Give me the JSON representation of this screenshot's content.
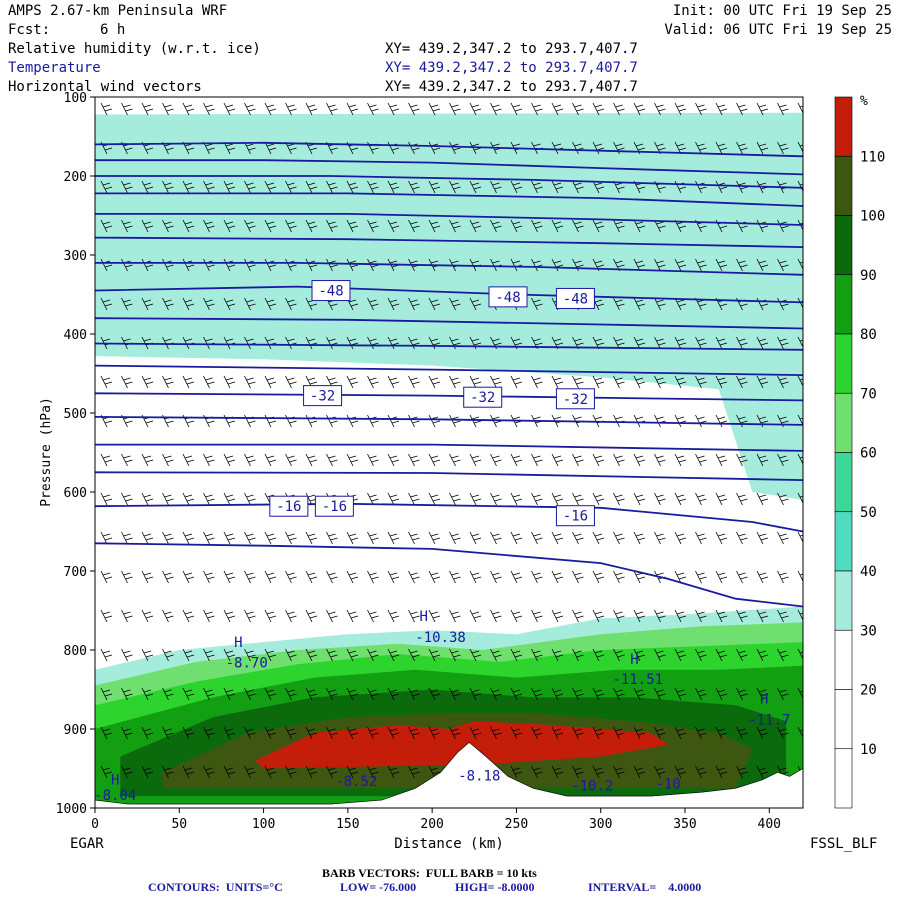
{
  "header": {
    "model": "AMPS 2.67-km Peninsula WRF",
    "fcst_label": "Fcst:",
    "fcst_value": "6 h",
    "init": "Init: 00 UTC Fri 19 Sep 25",
    "valid": "Valid: 06 UTC Fri 19 Sep 25",
    "fields": [
      {
        "label": "Relative humidity (w.r.t. ice)",
        "xy": "XY= 439.2,347.2 to 293.7,407.7"
      },
      {
        "label": "Temperature",
        "xy": "XY= 439.2,347.2 to 293.7,407.7"
      },
      {
        "label": "Horizontal wind vectors",
        "xy": "XY= 439.2,347.2 to 293.7,407.7"
      }
    ]
  },
  "footer": {
    "left_station": "EGAR",
    "right_station": "FSSL_BLF",
    "barb_note": "BARB VECTORS:  FULL BARB = 10 kts",
    "contour_units_label": "CONTOURS:  UNITS=°C",
    "low": "LOW= -76.000",
    "high": "HIGH= -8.0000",
    "interval": "INTERVAL=    4.0000"
  },
  "colorbar": {
    "unit": "%",
    "levels": [
      {
        "label": "",
        "color": "#c41e0a"
      },
      {
        "label": "110",
        "color": "#3d5710"
      },
      {
        "label": "100",
        "color": "#0b6a0b"
      },
      {
        "label": "90",
        "color": "#12a012"
      },
      {
        "label": "80",
        "color": "#2dd42d"
      },
      {
        "label": "70",
        "color": "#6fe06f"
      },
      {
        "label": "60",
        "color": "#3fd69a"
      },
      {
        "label": "50",
        "color": "#4fdcc0"
      },
      {
        "label": "40",
        "color": "#a5ecdc"
      },
      {
        "label": "30",
        "color": "#ffffff"
      },
      {
        "label": "20",
        "color": "#ffffff"
      },
      {
        "label": "10",
        "color": "#ffffff"
      }
    ]
  },
  "chart_data": {
    "type": "heatmap",
    "xlabel": "Distance (km)",
    "ylabel": "Pressure (hPa)",
    "xlim": [
      0,
      420
    ],
    "ylim": [
      1000,
      100
    ],
    "x_ticks": [
      0,
      50,
      100,
      150,
      200,
      250,
      300,
      350,
      400
    ],
    "y_ticks": [
      100,
      200,
      300,
      400,
      500,
      600,
      700,
      800,
      900,
      1000
    ],
    "terrain_km_hpa": [
      [
        0,
        990
      ],
      [
        20,
        995
      ],
      [
        60,
        995
      ],
      [
        100,
        995
      ],
      [
        140,
        995
      ],
      [
        170,
        990
      ],
      [
        190,
        975
      ],
      [
        205,
        955
      ],
      [
        215,
        930
      ],
      [
        222,
        917
      ],
      [
        232,
        935
      ],
      [
        245,
        960
      ],
      [
        260,
        975
      ],
      [
        280,
        985
      ],
      [
        300,
        985
      ],
      [
        330,
        985
      ],
      [
        360,
        980
      ],
      [
        380,
        975
      ],
      [
        395,
        965
      ],
      [
        405,
        955
      ],
      [
        412,
        960
      ],
      [
        420,
        950
      ]
    ],
    "rh_bands": [
      {
        "level": 110,
        "points": [
          [
            0,
            190
          ],
          [
            80,
            175
          ],
          [
            160,
            180
          ],
          [
            250,
            185
          ],
          [
            320,
            190
          ],
          [
            420,
            200
          ],
          [
            420,
            270
          ],
          [
            320,
            280
          ],
          [
            200,
            300
          ],
          [
            100,
            295
          ],
          [
            0,
            290
          ]
        ]
      },
      {
        "level": 100,
        "points": [
          [
            0,
            165
          ],
          [
            100,
            160
          ],
          [
            200,
            160
          ],
          [
            300,
            165
          ],
          [
            420,
            170
          ],
          [
            420,
            310
          ],
          [
            300,
            330
          ],
          [
            200,
            340
          ],
          [
            100,
            335
          ],
          [
            0,
            330
          ]
        ]
      },
      {
        "level": 90,
        "points": [
          [
            0,
            148
          ],
          [
            200,
            145
          ],
          [
            420,
            150
          ],
          [
            420,
            335
          ],
          [
            300,
            355
          ],
          [
            150,
            370
          ],
          [
            0,
            372
          ]
        ]
      },
      {
        "level": 80,
        "points": [
          [
            0,
            138
          ],
          [
            200,
            135
          ],
          [
            420,
            138
          ],
          [
            420,
            350
          ],
          [
            300,
            375
          ],
          [
            150,
            395
          ],
          [
            0,
            400
          ]
        ]
      },
      {
        "level": 60,
        "points": [
          [
            0,
            130
          ],
          [
            420,
            130
          ],
          [
            420,
            390
          ],
          [
            320,
            410
          ],
          [
            200,
            420
          ],
          [
            100,
            420
          ],
          [
            0,
            420
          ]
        ]
      },
      {
        "level": 40,
        "points": [
          [
            0,
            122
          ],
          [
            420,
            120
          ],
          [
            420,
            610
          ],
          [
            390,
            600
          ],
          [
            370,
            470
          ],
          [
            300,
            455
          ],
          [
            200,
            440
          ],
          [
            100,
            432
          ],
          [
            0,
            428
          ]
        ]
      },
      {
        "level": 40,
        "points": [
          [
            0,
            825
          ],
          [
            50,
            800
          ],
          [
            100,
            790
          ],
          [
            150,
            780
          ],
          [
            200,
            775
          ],
          [
            250,
            780
          ],
          [
            300,
            760
          ],
          [
            350,
            755
          ],
          [
            420,
            745
          ],
          [
            420,
            995
          ],
          [
            0,
            995
          ]
        ]
      },
      {
        "level": 60,
        "points": [
          [
            0,
            845
          ],
          [
            60,
            815
          ],
          [
            120,
            800
          ],
          [
            180,
            792
          ],
          [
            230,
            800
          ],
          [
            300,
            780
          ],
          [
            360,
            770
          ],
          [
            420,
            765
          ],
          [
            420,
            995
          ],
          [
            0,
            995
          ]
        ]
      },
      {
        "level": 80,
        "points": [
          [
            0,
            870
          ],
          [
            60,
            840
          ],
          [
            120,
            818
          ],
          [
            180,
            805
          ],
          [
            240,
            815
          ],
          [
            300,
            800
          ],
          [
            360,
            795
          ],
          [
            420,
            790
          ],
          [
            420,
            995
          ],
          [
            0,
            995
          ]
        ]
      },
      {
        "level": 90,
        "points": [
          [
            0,
            900
          ],
          [
            70,
            860
          ],
          [
            130,
            835
          ],
          [
            190,
            825
          ],
          [
            250,
            835
          ],
          [
            310,
            825
          ],
          [
            370,
            825
          ],
          [
            420,
            820
          ],
          [
            420,
            995
          ],
          [
            0,
            995
          ]
        ]
      },
      {
        "level": 100,
        "points": [
          [
            15,
            935
          ],
          [
            70,
            885
          ],
          [
            130,
            860
          ],
          [
            200,
            850
          ],
          [
            260,
            860
          ],
          [
            320,
            860
          ],
          [
            380,
            870
          ],
          [
            410,
            890
          ],
          [
            410,
            985
          ],
          [
            15,
            985
          ]
        ]
      },
      {
        "level": 110,
        "points": [
          [
            40,
            955
          ],
          [
            90,
            905
          ],
          [
            150,
            885
          ],
          [
            210,
            880
          ],
          [
            260,
            880
          ],
          [
            320,
            890
          ],
          [
            370,
            905
          ],
          [
            390,
            925
          ],
          [
            380,
            975
          ],
          [
            40,
            975
          ]
        ]
      },
      {
        "level": 120,
        "points": [
          [
            95,
            940
          ],
          [
            130,
            905
          ],
          [
            180,
            895
          ],
          [
            210,
            900
          ],
          [
            225,
            890
          ],
          [
            270,
            895
          ],
          [
            330,
            905
          ],
          [
            340,
            920
          ],
          [
            300,
            935
          ],
          [
            230,
            945
          ],
          [
            100,
            950
          ]
        ]
      }
    ],
    "isotherms_hpa": [
      [
        [
          0,
          160
        ],
        [
          100,
          158
        ],
        [
          200,
          162
        ],
        [
          300,
          168
        ],
        [
          420,
          175
        ]
      ],
      [
        [
          0,
          180
        ],
        [
          100,
          180
        ],
        [
          200,
          183
        ],
        [
          300,
          190
        ],
        [
          420,
          198
        ]
      ],
      [
        [
          0,
          200
        ],
        [
          140,
          200
        ],
        [
          260,
          205
        ],
        [
          420,
          215
        ]
      ],
      [
        [
          0,
          222
        ],
        [
          150,
          222
        ],
        [
          300,
          228
        ],
        [
          420,
          238
        ]
      ],
      [
        [
          0,
          248
        ],
        [
          150,
          248
        ],
        [
          300,
          255
        ],
        [
          420,
          262
        ]
      ],
      [
        [
          0,
          278
        ],
        [
          150,
          280
        ],
        [
          300,
          285
        ],
        [
          420,
          290
        ]
      ],
      [
        [
          0,
          310
        ],
        [
          120,
          310
        ],
        [
          260,
          315
        ],
        [
          420,
          325
        ]
      ],
      [
        [
          0,
          345
        ],
        [
          120,
          340
        ],
        [
          250,
          350
        ],
        [
          420,
          360
        ]
      ],
      [
        [
          0,
          380
        ],
        [
          150,
          382
        ],
        [
          300,
          388
        ],
        [
          420,
          393
        ]
      ],
      [
        [
          0,
          412
        ],
        [
          200,
          415
        ],
        [
          420,
          420
        ]
      ],
      [
        [
          0,
          440
        ],
        [
          200,
          445
        ],
        [
          420,
          452
        ]
      ],
      [
        [
          0,
          475
        ],
        [
          200,
          478
        ],
        [
          420,
          484
        ]
      ],
      [
        [
          0,
          505
        ],
        [
          200,
          508
        ],
        [
          420,
          515
        ]
      ],
      [
        [
          0,
          540
        ],
        [
          200,
          540
        ],
        [
          420,
          548
        ]
      ],
      [
        [
          0,
          575
        ],
        [
          200,
          576
        ],
        [
          420,
          585
        ]
      ],
      [
        [
          0,
          618
        ],
        [
          150,
          615
        ],
        [
          300,
          620
        ],
        [
          390,
          638
        ],
        [
          420,
          650
        ]
      ],
      [
        [
          0,
          665
        ],
        [
          100,
          668
        ],
        [
          200,
          672
        ],
        [
          300,
          690
        ],
        [
          340,
          710
        ],
        [
          380,
          735
        ],
        [
          420,
          745
        ]
      ]
    ],
    "isotherm_labels": [
      {
        "text": "-48",
        "x": 140,
        "p": 345
      },
      {
        "text": "-48",
        "x": 245,
        "p": 353
      },
      {
        "text": "-48",
        "x": 285,
        "p": 355
      },
      {
        "text": "-32",
        "x": 135,
        "p": 478
      },
      {
        "text": "-32",
        "x": 230,
        "p": 480
      },
      {
        "text": "-32",
        "x": 285,
        "p": 482
      },
      {
        "text": "-16",
        "x": 115,
        "p": 618
      },
      {
        "text": "-16",
        "x": 142,
        "p": 618
      },
      {
        "text": "-16",
        "x": 285,
        "p": 630
      }
    ],
    "extrema": [
      {
        "kind": "H",
        "x": 85,
        "p": 796
      },
      {
        "kind": "H",
        "x": 195,
        "p": 763
      },
      {
        "kind": "H",
        "x": 320,
        "p": 818
      },
      {
        "kind": "H",
        "x": 397,
        "p": 868
      },
      {
        "kind": "H",
        "x": 12,
        "p": 970
      }
    ],
    "extrema_values": [
      {
        "text": "-8.70",
        "x": 90,
        "p": 822
      },
      {
        "text": "-10.38",
        "x": 205,
        "p": 790
      },
      {
        "text": "-11.51",
        "x": 322,
        "p": 843
      },
      {
        "text": "-11.7",
        "x": 400,
        "p": 894
      },
      {
        "text": "-8.52",
        "x": 155,
        "p": 972
      },
      {
        "text": "-8.18",
        "x": 228,
        "p": 965
      },
      {
        "text": "-10.2",
        "x": 295,
        "p": 978
      },
      {
        "text": "-10",
        "x": 340,
        "p": 975
      },
      {
        "text": "-8.04",
        "x": 12,
        "p": 990
      }
    ]
  }
}
